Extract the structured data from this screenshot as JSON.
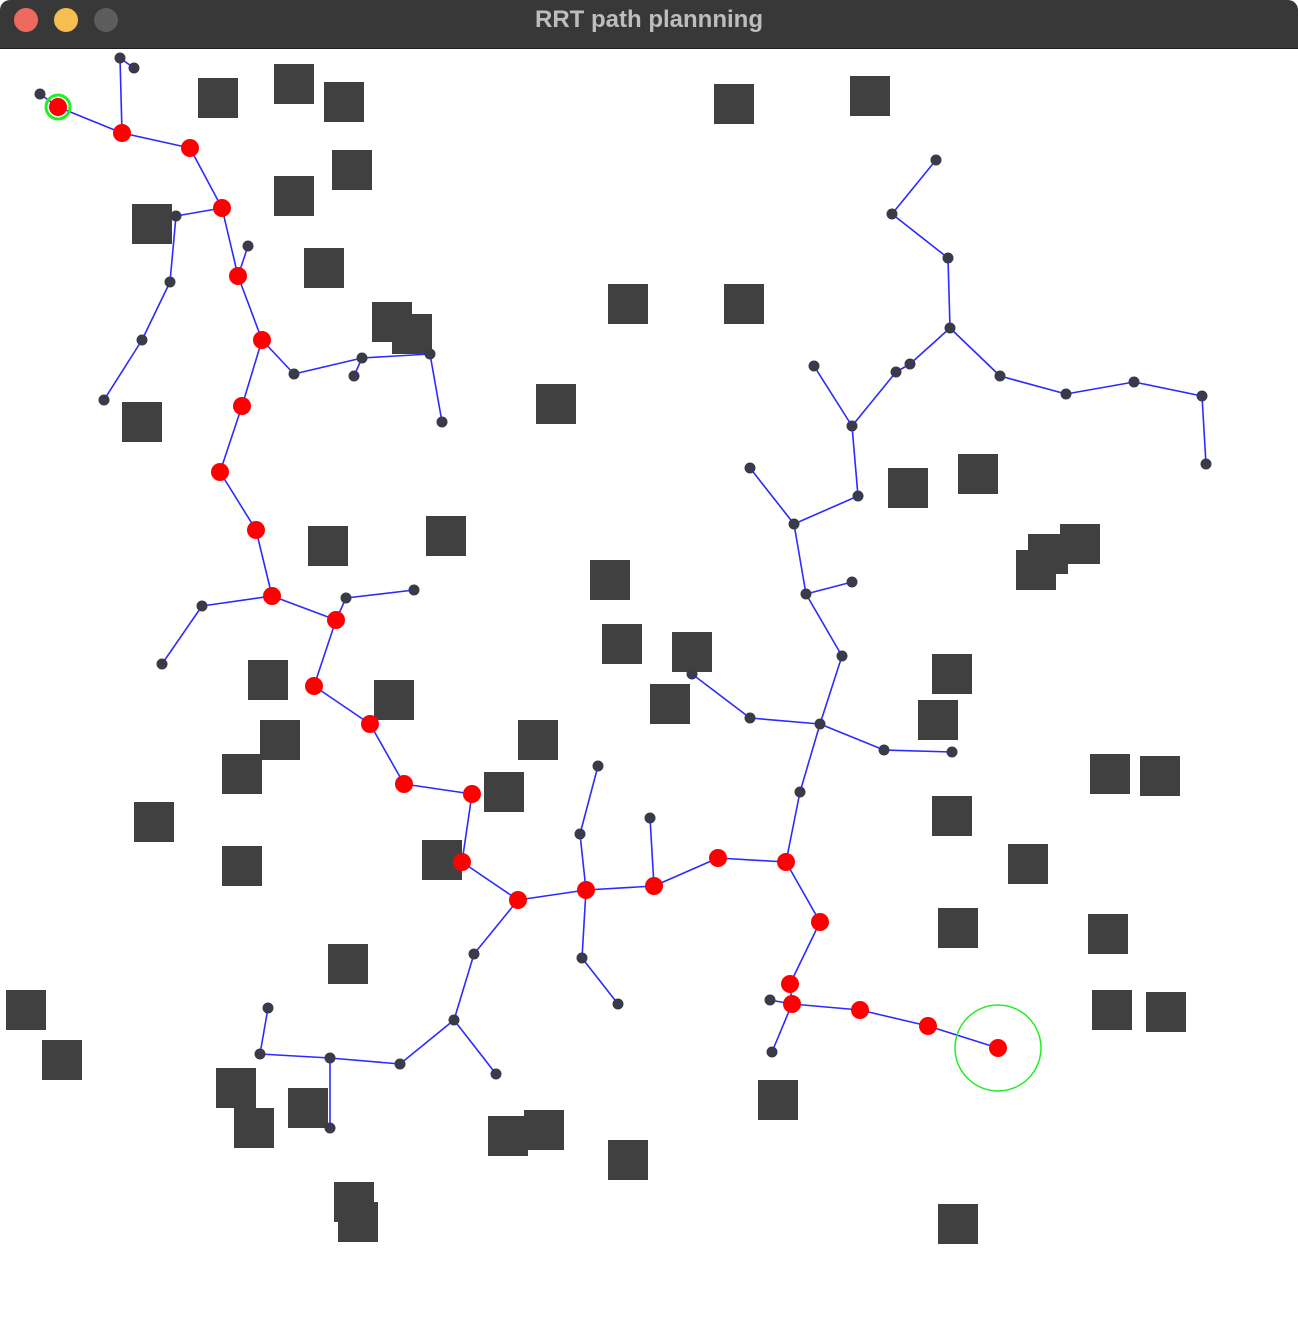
{
  "window": {
    "title": "RRT path plannning",
    "controls": {
      "close_color": "#ee6a5f",
      "minimize_color": "#f5be4f",
      "zoom_color": "#5c5c5c"
    }
  },
  "colors": {
    "background": "#ffffff",
    "obstacle": "#404040",
    "edge": "#2b2bff",
    "tree_node": "#3a3a4a",
    "path_node": "#ff0000",
    "start_goal_ring": "#22ee22"
  }
}
